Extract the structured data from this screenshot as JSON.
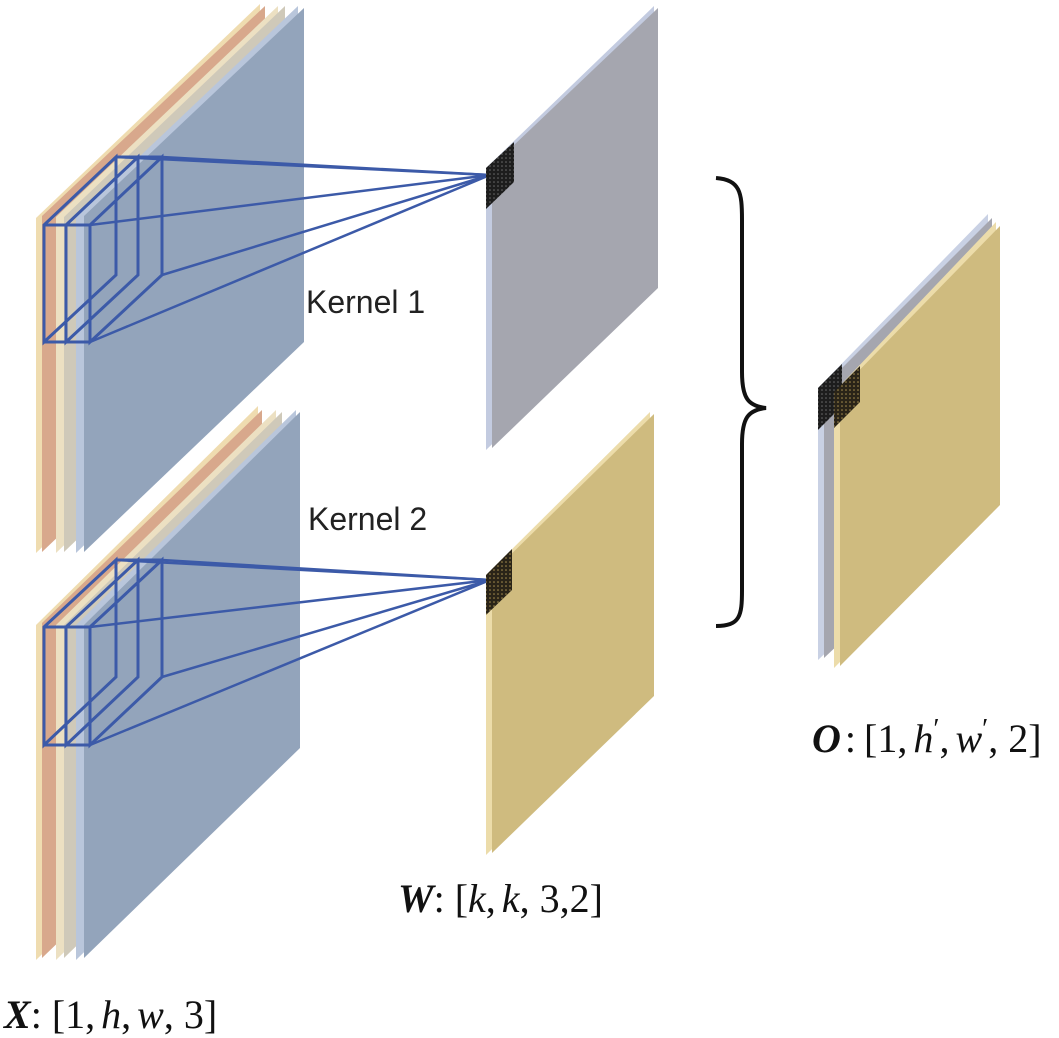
{
  "kernel_labels": {
    "kernel1": "Kernel 1",
    "kernel2": "Kernel 2"
  },
  "input": {
    "symbol": "X",
    "shape_open": ":",
    "shape_parts": [
      "[1,",
      "h",
      ",",
      "w",
      ", 3]"
    ]
  },
  "weights": {
    "symbol": "W",
    "shape_open": ":",
    "shape_parts": [
      "[",
      "k",
      ",",
      "k",
      ", 3,2]"
    ]
  },
  "output": {
    "symbol": "O",
    "shape_open": ":",
    "shape_parts": [
      "[1,",
      "h",
      "′",
      ",",
      "w",
      "′",
      ", 2]"
    ]
  },
  "colors": {
    "channel_red": "#d8a88c",
    "channel_beige": "#e8d6ad",
    "channel_blue": "#93a4bb",
    "kernel_gray": "#a5a6af",
    "kernel_gold": "#cfbb7f",
    "window_stroke": "#3c5aa8",
    "brace": "#111111"
  }
}
